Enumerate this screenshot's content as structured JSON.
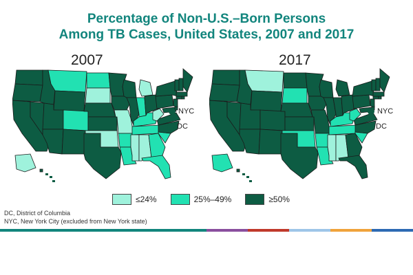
{
  "title": {
    "line1": "Percentage of Non-U.S.–Born Persons",
    "line2": "Among TB Cases, United States, 2007 and 2017"
  },
  "maps": [
    {
      "year": "2007",
      "states": {
        "WA": "high",
        "OR": "high",
        "CA": "high",
        "NV": "high",
        "ID": "high",
        "MT": "mid",
        "WY": "high",
        "UT": "high",
        "AZ": "high",
        "CO": "mid",
        "NM": "high",
        "ND": "mid",
        "SD": "low",
        "NE": "high",
        "KS": "high",
        "OK": "low",
        "TX": "high",
        "MN": "high",
        "IA": "high",
        "MO": "low",
        "AR": "mid",
        "LA": "mid",
        "WI": "high",
        "IL": "high",
        "MI": "low",
        "IN": "mid",
        "OH": "high",
        "KY": "mid",
        "TN": "mid",
        "MS": "low",
        "AL": "low",
        "GA": "mid",
        "FL": "mid",
        "SC": "mid",
        "NC": "high",
        "VA": "high",
        "WV": "low",
        "MD": "high",
        "DE": "high",
        "PA": "high",
        "NJ": "high",
        "NY": "high",
        "CT": "high",
        "RI": "high",
        "MA": "high",
        "VT": "high",
        "NH": "high",
        "ME": "high",
        "AK": "low",
        "HI": "high"
      },
      "nyc_label": "NYC",
      "dc_label": "DC",
      "nyc_category": "high",
      "dc_category": "high"
    },
    {
      "year": "2017",
      "states": {
        "WA": "high",
        "OR": "high",
        "CA": "high",
        "NV": "high",
        "ID": "high",
        "MT": "low",
        "WY": "high",
        "UT": "high",
        "AZ": "high",
        "CO": "high",
        "NM": "high",
        "ND": "high",
        "SD": "mid",
        "NE": "high",
        "KS": "high",
        "OK": "mid",
        "TX": "high",
        "MN": "high",
        "IA": "high",
        "MO": "high",
        "AR": "mid",
        "LA": "mid",
        "WI": "high",
        "IL": "high",
        "MI": "high",
        "IN": "high",
        "OH": "high",
        "KY": "mid",
        "TN": "mid",
        "MS": "low",
        "AL": "low",
        "GA": "high",
        "FL": "high",
        "SC": "mid",
        "NC": "high",
        "VA": "high",
        "WV": "mid",
        "MD": "high",
        "DE": "high",
        "PA": "high",
        "NJ": "high",
        "NY": "high",
        "CT": "high",
        "RI": "high",
        "MA": "high",
        "VT": "high",
        "NH": "high",
        "ME": "high",
        "AK": "mid",
        "HI": "high"
      },
      "nyc_label": "NYC",
      "dc_label": "DC",
      "nyc_category": "high",
      "dc_category": "high"
    }
  ],
  "legend": [
    {
      "key": "low",
      "label": "≤24%",
      "color": "#9ff2dc"
    },
    {
      "key": "mid",
      "label": "25%–49%",
      "color": "#22e1b2"
    },
    {
      "key": "high",
      "label": "≥50%",
      "color": "#0d5c43"
    }
  ],
  "footnotes": {
    "dc": "DC, District of Columbia",
    "nyc": "NYC, New York City (excluded from New York state)"
  },
  "colors": {
    "title": "#12857d",
    "border": "#1a1a1a",
    "bar": [
      "#12857d",
      "#12857d",
      "#12857d",
      "#12857d",
      "#12857d",
      "#8a4f9e",
      "#c0392b",
      "#9ec5e8",
      "#f0a33b",
      "#2d6ab3"
    ]
  }
}
